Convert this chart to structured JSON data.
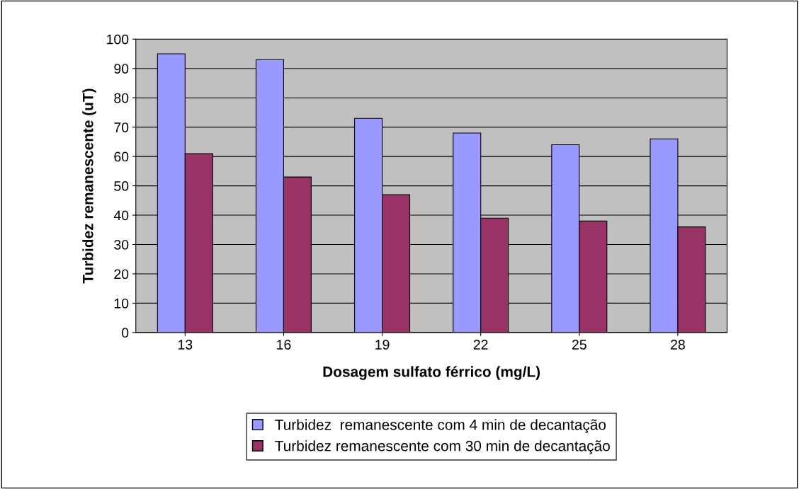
{
  "chart_data": {
    "type": "bar",
    "xlabel": "Dosagem sulfato férrico (mg/L)",
    "ylabel": "Turbidez remanescente (uT)",
    "categories": [
      "13",
      "16",
      "19",
      "22",
      "25",
      "28"
    ],
    "series": [
      {
        "name": "Turbidez  remanescente com 4 min de decantação",
        "color": "#9999ff",
        "values": [
          95,
          93,
          73,
          68,
          64,
          66
        ]
      },
      {
        "name": "Turbidez remanescente com 30 min de decantação",
        "color": "#993366",
        "values": [
          61,
          53,
          47,
          39,
          38,
          36
        ]
      }
    ],
    "ylim": [
      0,
      100
    ],
    "yticks": [
      0,
      10,
      20,
      30,
      40,
      50,
      60,
      70,
      80,
      90,
      100
    ],
    "grid": "y",
    "legend": "bottom"
  }
}
